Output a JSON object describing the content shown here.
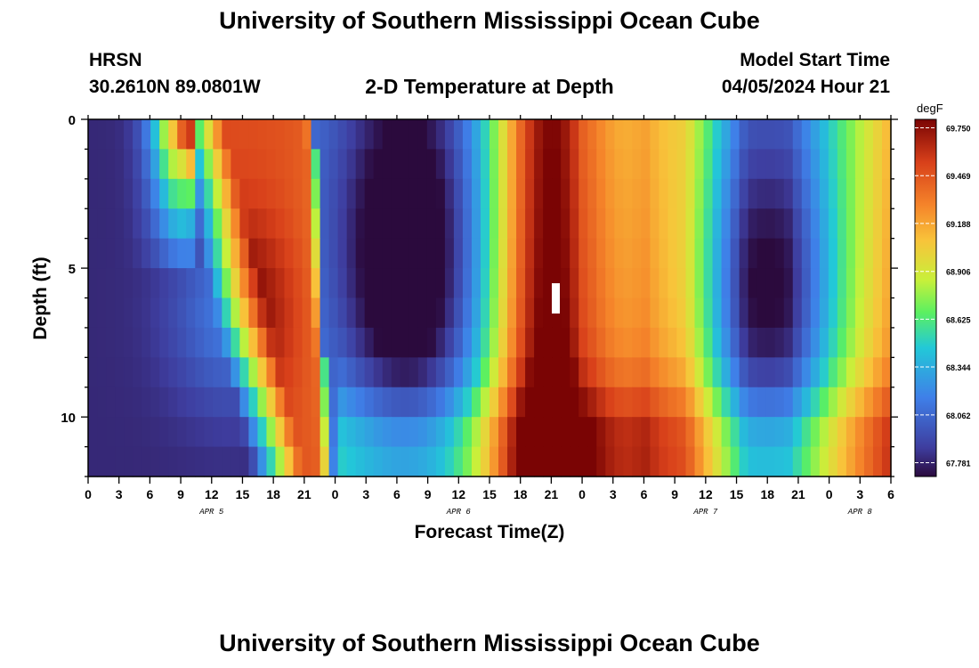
{
  "header": {
    "title": "University of Southern Mississippi Ocean Cube",
    "station": "HRSN",
    "coords": "30.2610N  89.0801W",
    "plot_title": "2-D Temperature at Depth",
    "start_label": "Model Start Time",
    "start_value": "04/05/2024 Hour 21"
  },
  "footer": {
    "title": "University of Southern Mississippi Ocean Cube"
  },
  "chart_data": {
    "type": "heatmap",
    "title": "2-D Temperature at Depth",
    "xlabel": "Forecast Time(Z)",
    "ylabel": "Depth (ft)",
    "x_tick_labels": [
      "0",
      "3",
      "6",
      "9",
      "12",
      "15",
      "18",
      "21",
      "0",
      "3",
      "6",
      "9",
      "12",
      "15",
      "18",
      "21",
      "0",
      "3",
      "6",
      "9",
      "12",
      "15",
      "18",
      "21",
      "0",
      "3",
      "6"
    ],
    "day_labels": [
      {
        "label": "APR 5",
        "at_tick": 4
      },
      {
        "label": "APR 6",
        "at_tick": 12
      },
      {
        "label": "APR 7",
        "at_tick": 20
      },
      {
        "label": "APR 8",
        "at_tick": 25
      }
    ],
    "x_hours_from_apr5_00z": [
      0,
      78
    ],
    "y_ticks": [
      0,
      5,
      10
    ],
    "ylim_ft": [
      0,
      12
    ],
    "colorbar": {
      "unit": "degF",
      "min": 67.7,
      "max": 69.8,
      "ticks": [
        "69.750",
        "69.469",
        "69.188",
        "68.906",
        "68.625",
        "68.344",
        "68.062",
        "67.781"
      ]
    },
    "description_of_field": "Temperature (degF) vs forecast hour and depth; cold ~67.8 at start, warm layer mid-depth on APR 5 hours 12-22, cool trough APR 6 00-12Z, warm maximum ~69.8 APR 6 21Z, cooling APR 7 12-21Z at mid depth, warming toward APR 8.",
    "colors": {
      "c0": "#2b0a3d",
      "c1": "#3e3d9e",
      "c2": "#3f7fe8",
      "c3": "#22c8d8",
      "c4": "#5cf060",
      "c5": "#c8f03a",
      "c6": "#f8c43a",
      "c7": "#f5842a",
      "c8": "#d8401a",
      "c9": "#7a0404"
    }
  }
}
